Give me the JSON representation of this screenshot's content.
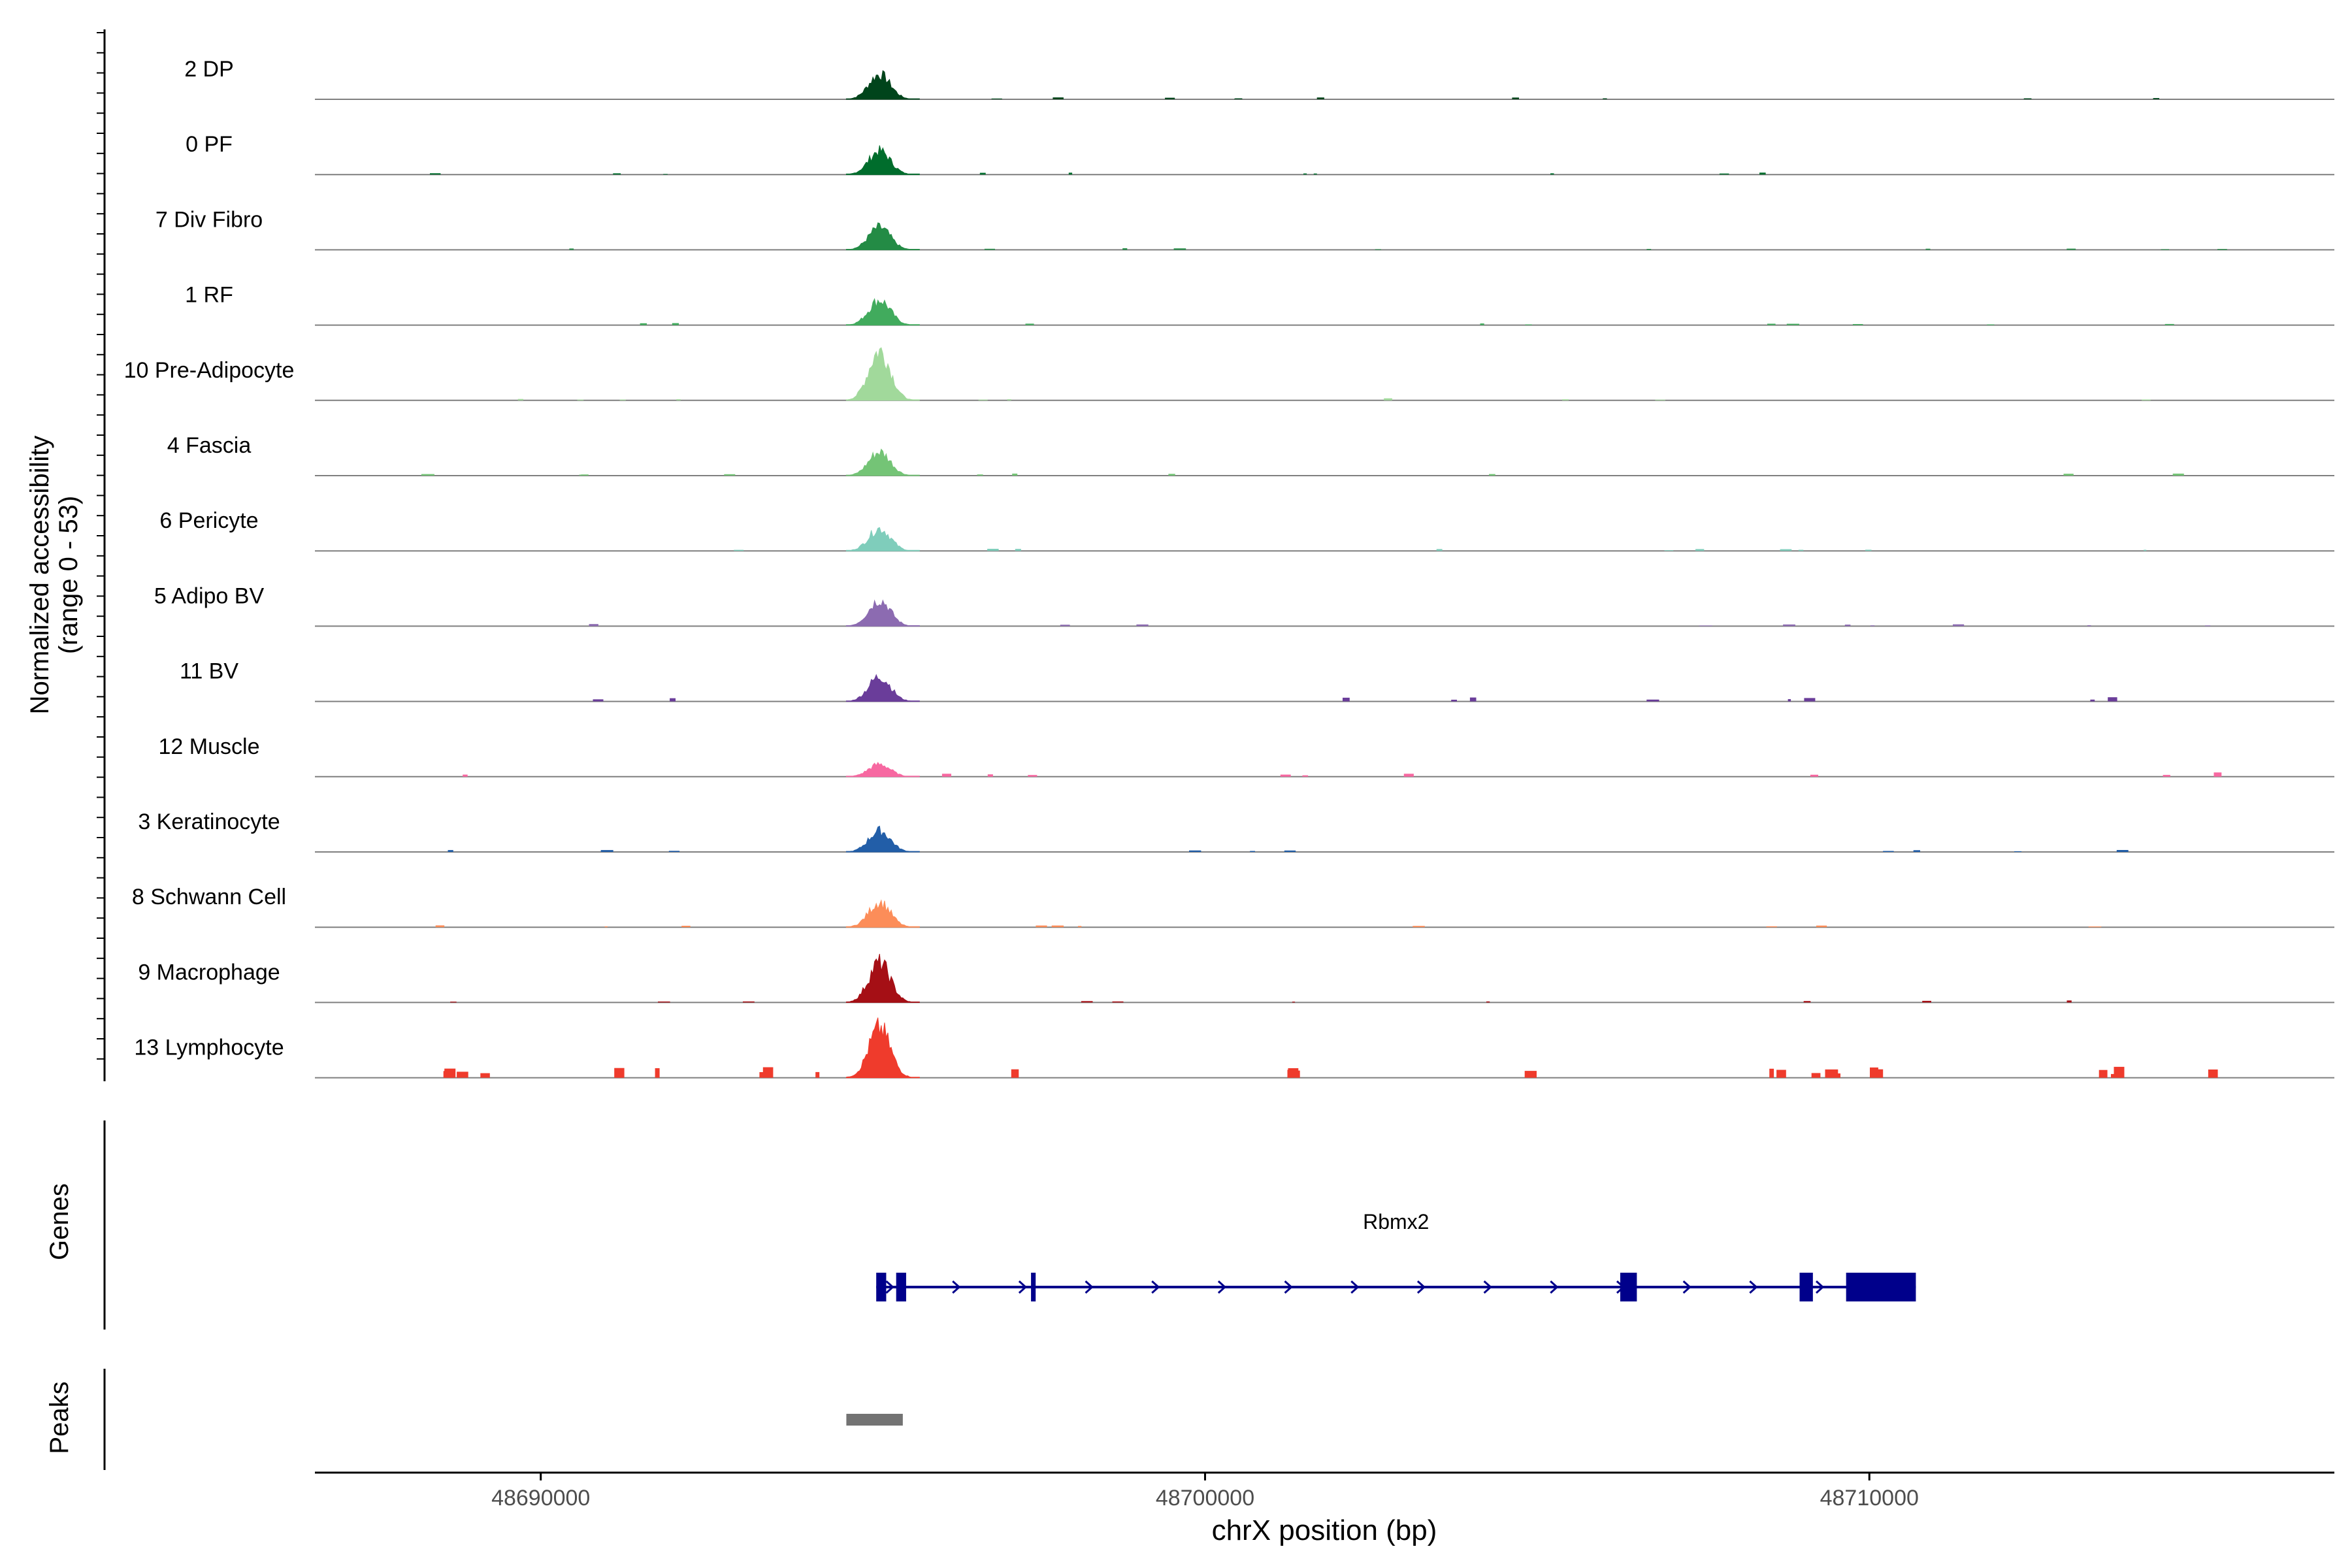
{
  "chart_data": {
    "type": "area",
    "title": "",
    "ylabel_line1": "Normalized accessibility",
    "ylabel_line2": "(range 0 - 53)",
    "xlabel": "chrX position (bp)",
    "y_range": [
      0,
      53
    ],
    "x_range": [
      48686600,
      48717000
    ],
    "x_ticks": [
      {
        "value": 48690000,
        "label": "48690000"
      },
      {
        "value": 48700000,
        "label": "48700000"
      },
      {
        "value": 48710000,
        "label": "48710000"
      }
    ],
    "tracks": [
      {
        "name": "2 DP",
        "color": "#00441b",
        "peak": 20
      },
      {
        "name": "0 PF",
        "color": "#006d2c",
        "peak": 19
      },
      {
        "name": "7 Div Fibro",
        "color": "#238b45",
        "peak": 18
      },
      {
        "name": "1 RF",
        "color": "#41ab5d",
        "peak": 20
      },
      {
        "name": "10 Pre-Adipocyte",
        "color": "#a1d99b",
        "peak": 40
      },
      {
        "name": "4 Fascia",
        "color": "#74c476",
        "peak": 19
      },
      {
        "name": "6 Pericyte",
        "color": "#7fcdbb",
        "peak": 18
      },
      {
        "name": "5 Adipo BV",
        "color": "#8c6bb1",
        "peak": 21
      },
      {
        "name": "11 BV",
        "color": "#6a3d9a",
        "peak": 20
      },
      {
        "name": "12 Muscle",
        "color": "#f768a1",
        "peak": 10
      },
      {
        "name": "3 Keratinocyte",
        "color": "#225ea8",
        "peak": 17
      },
      {
        "name": "8 Schwann Cell",
        "color": "#fc8d59",
        "peak": 20
      },
      {
        "name": "9 Macrophage",
        "color": "#a50f15",
        "peak": 32
      },
      {
        "name": "13 Lymphocyte",
        "color": "#ef3b2c",
        "peak": 40
      }
    ],
    "genes_label": "Genes",
    "peaks_label": "Peaks",
    "gene": {
      "name": "Rbmx2",
      "start": 48695050,
      "end": 48710700,
      "strand": "+",
      "color": "#00008b",
      "exons": [
        [
          48695050,
          48695200
        ],
        [
          48695350,
          48695500
        ],
        [
          48697380,
          48697450
        ],
        [
          48706250,
          48706500
        ],
        [
          48708950,
          48709150
        ],
        [
          48709650,
          48710700
        ]
      ]
    },
    "peak_regions": [
      {
        "start": 48694600,
        "end": 48695450,
        "color": "#737373"
      }
    ]
  }
}
